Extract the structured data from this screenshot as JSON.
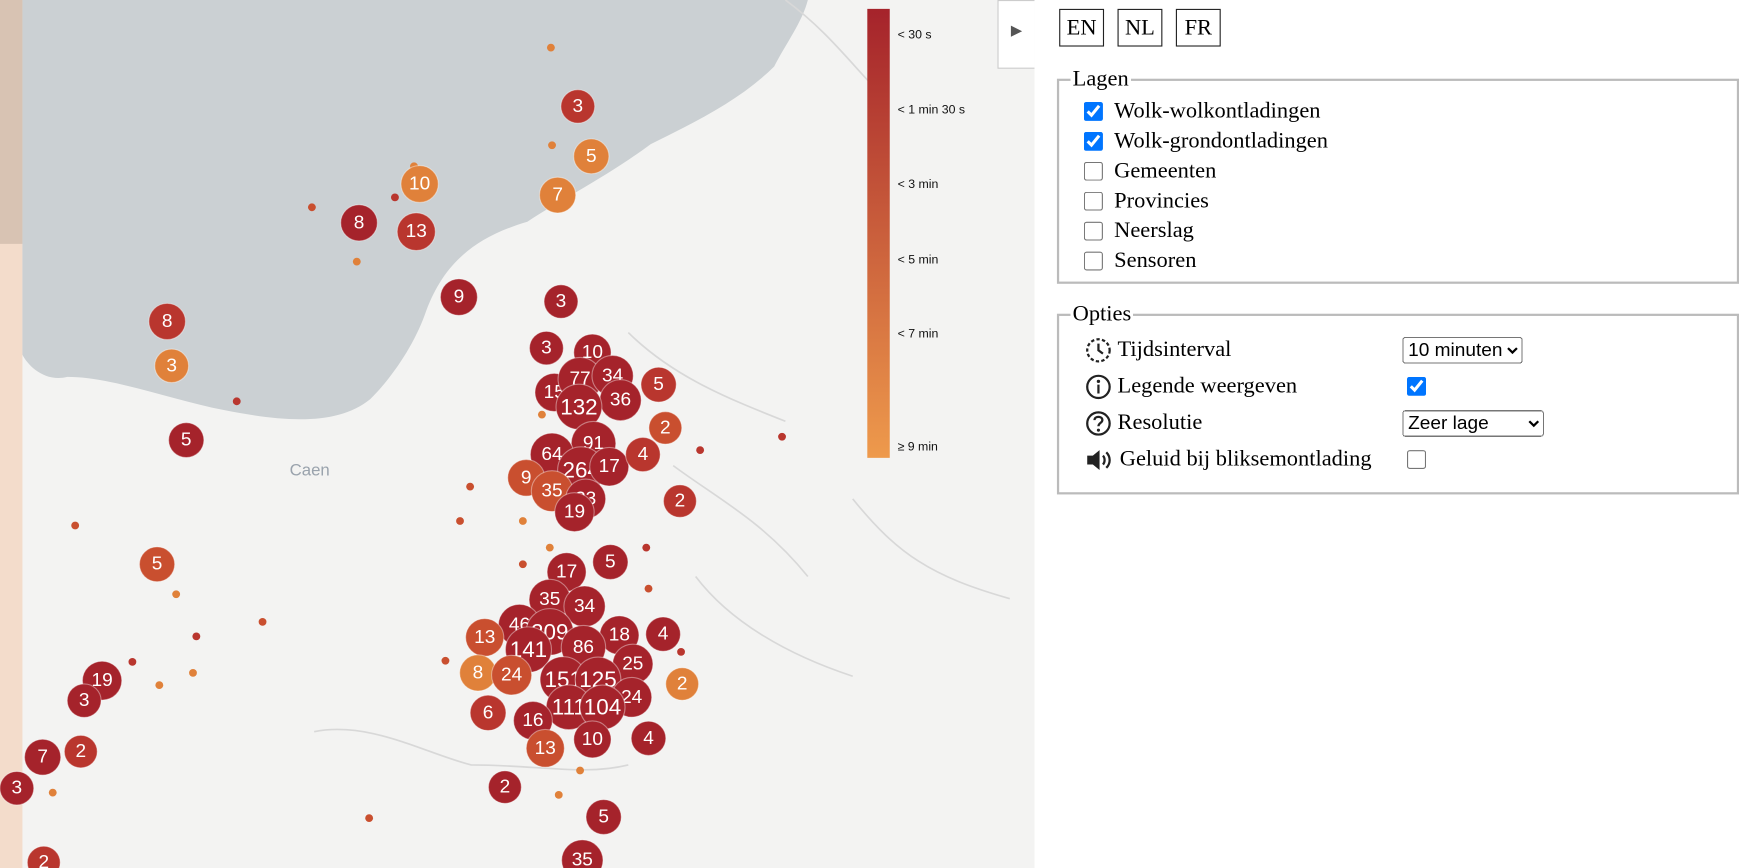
{
  "toggle": "▶",
  "legend": {
    "labels": [
      "< 30 s",
      "< 1 min 30 s",
      "< 3 min",
      "< 5 min",
      "< 7 min",
      "≥ 9 min"
    ]
  },
  "map": {
    "place_label": "Caen",
    "clusters": [
      3,
      5,
      10,
      7,
      8,
      13,
      9,
      3,
      8,
      3,
      3,
      10,
      15,
      77,
      34,
      36,
      5,
      132,
      2,
      5,
      91,
      64,
      264,
      17,
      4,
      9,
      35,
      23,
      19,
      2,
      5,
      17,
      5,
      35,
      34,
      46,
      209,
      13,
      18,
      4,
      141,
      86,
      25,
      8,
      24,
      151,
      125,
      2,
      24,
      19,
      3,
      6,
      111,
      104,
      16,
      4,
      10,
      13,
      7,
      2,
      3,
      2,
      5,
      35,
      2
    ]
  },
  "language_buttons": [
    "EN",
    "NL",
    "FR"
  ],
  "layers": {
    "title": "Lagen",
    "items": [
      {
        "label": "Wolk-wolkontladingen",
        "checked": true
      },
      {
        "label": "Wolk-grondontladingen",
        "checked": true
      },
      {
        "label": "Gemeenten",
        "checked": false
      },
      {
        "label": "Provincies",
        "checked": false
      },
      {
        "label": "Neerslag",
        "checked": false
      },
      {
        "label": "Sensoren",
        "checked": false
      }
    ]
  },
  "options": {
    "title": "Opties",
    "time_interval": {
      "label": "Tijdsinterval",
      "value": "10 minuten"
    },
    "show_legend": {
      "label": "Legende weergeven",
      "checked": true
    },
    "resolution": {
      "label": "Resolutie",
      "value": "Zeer lage"
    },
    "sound": {
      "label": "Geluid bij bliksemontlading",
      "checked": false
    }
  }
}
